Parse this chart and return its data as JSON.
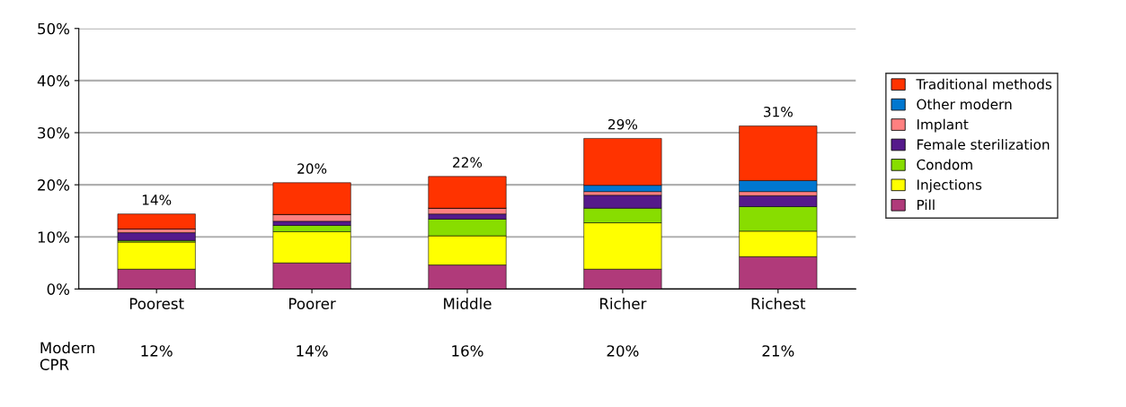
{
  "chart_data": {
    "type": "bar",
    "stacked": true,
    "categories": [
      "Poorest",
      "Poorer",
      "Middle",
      "Richer",
      "Richest"
    ],
    "series": [
      {
        "name": "Pill",
        "color": "#b03a7a",
        "values": [
          3.8,
          5.0,
          4.6,
          3.8,
          6.2
        ]
      },
      {
        "name": "Injections",
        "color": "#ffff00",
        "values": [
          5.2,
          6.0,
          5.6,
          8.9,
          4.9
        ]
      },
      {
        "name": "Condom",
        "color": "#88dd00",
        "values": [
          0.3,
          1.2,
          3.2,
          2.8,
          4.7
        ]
      },
      {
        "name": "Female sterilization",
        "color": "#551a8b",
        "values": [
          1.5,
          0.8,
          1.0,
          2.5,
          2.1
        ]
      },
      {
        "name": "Implant",
        "color": "#ff8080",
        "values": [
          0.7,
          1.3,
          1.1,
          0.7,
          0.8
        ]
      },
      {
        "name": "Other modern",
        "color": "#0077d0",
        "values": [
          0,
          0,
          0,
          1.2,
          2.1
        ]
      },
      {
        "name": "Traditional methods",
        "color": "#ff3300",
        "values": [
          2.9,
          6.1,
          6.1,
          9.0,
          10.5
        ]
      }
    ],
    "totals": [
      "14%",
      "20%",
      "22%",
      "29%",
      "31%"
    ],
    "ylim": [
      0,
      50
    ],
    "yticks": [
      {
        "value": 0,
        "label": "0%"
      },
      {
        "value": 10,
        "label": "10%"
      },
      {
        "value": 20,
        "label": "20%"
      },
      {
        "value": 30,
        "label": "30%"
      },
      {
        "value": 40,
        "label": "40%"
      },
      {
        "value": 50,
        "label": "50%"
      }
    ],
    "grid": "y",
    "legend": "right",
    "annotations": [
      "Modern CPR",
      "12%",
      "14%",
      "16%",
      "20%",
      "21%"
    ]
  }
}
